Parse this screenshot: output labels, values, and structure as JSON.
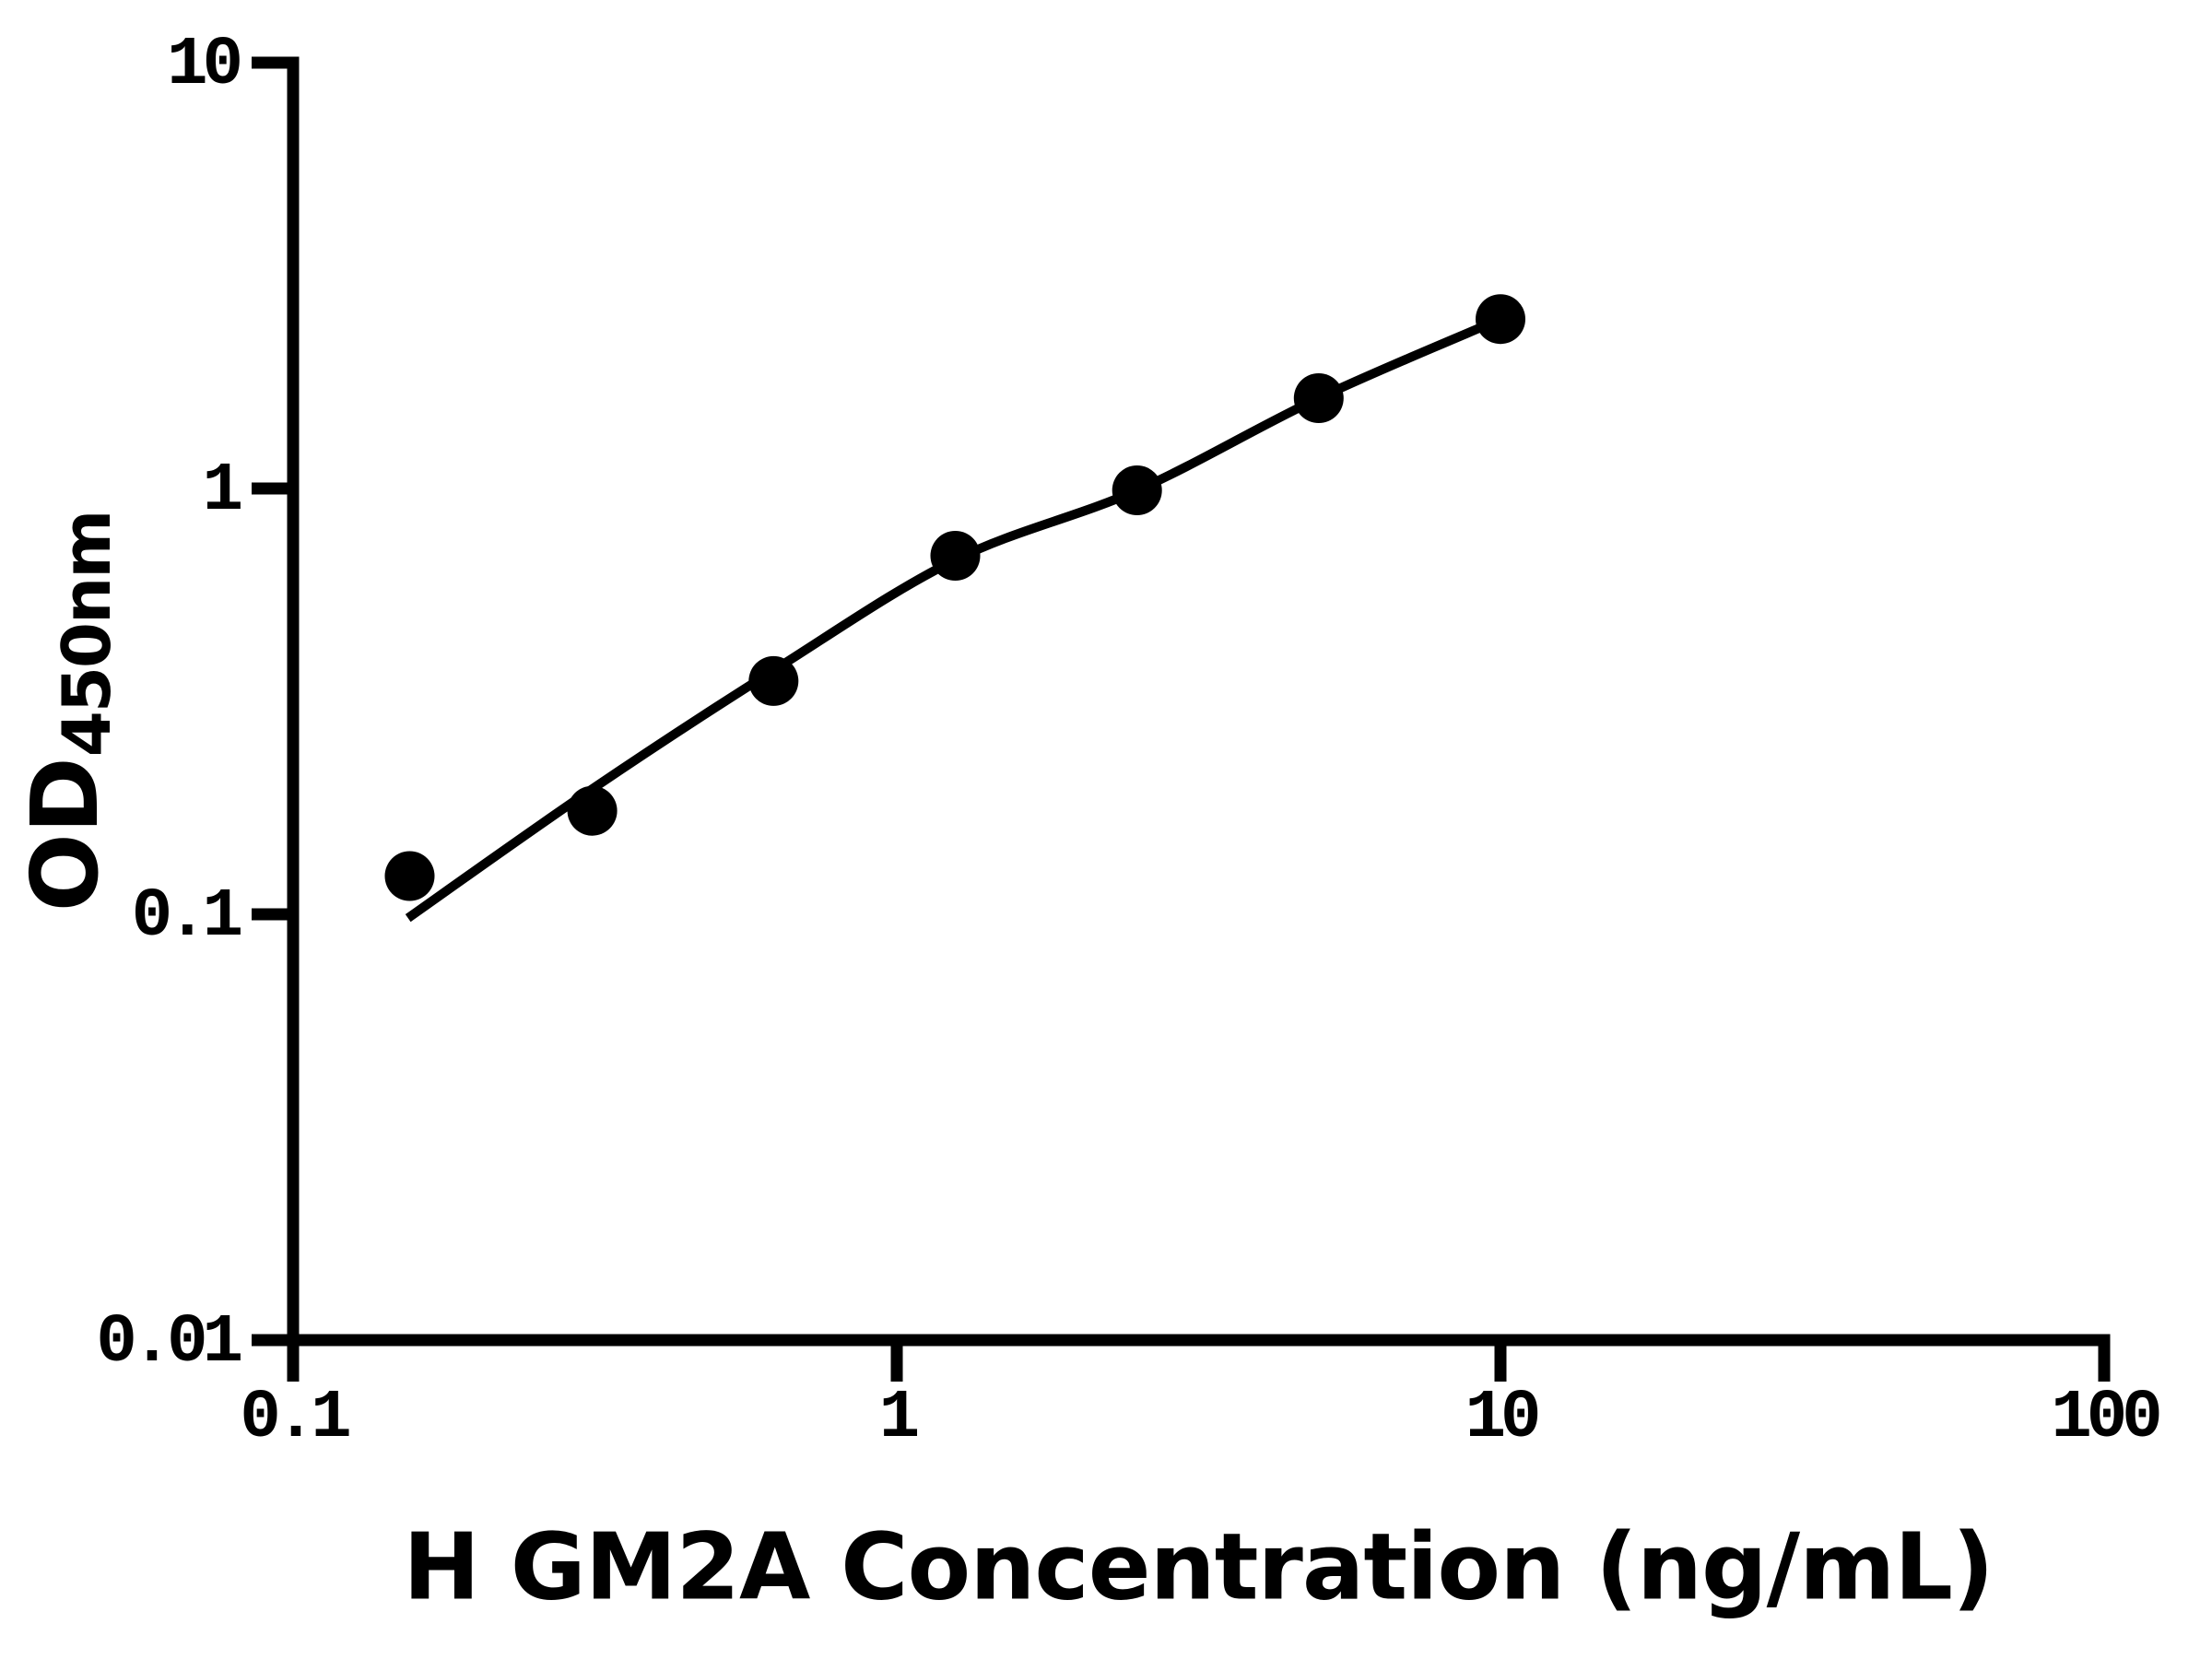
{
  "figure": {
    "background": "#ffffff",
    "ink": "#000000"
  },
  "chart_data": {
    "type": "scatter",
    "title": "",
    "xlabel": "H GM2A Concentration (ng/mL)",
    "ylabel": "OD450nm",
    "ylabel_base": "OD",
    "ylabel_subscript": "450nm",
    "x_scale": "log",
    "y_scale": "log",
    "xlim": [
      0.1,
      100
    ],
    "ylim": [
      0.01,
      10
    ],
    "x_ticks": [
      "0.1",
      "1",
      "10",
      "100"
    ],
    "y_ticks": [
      "10",
      "1",
      "0.1",
      "0.01"
    ],
    "grid": false,
    "legend": "none",
    "marker_color": "#000000",
    "line_color": "#000000",
    "series": [
      {
        "name": "standards",
        "type": "scatter",
        "marker": "circle",
        "points": [
          {
            "x": 0.156,
            "y": 0.123
          },
          {
            "x": 0.313,
            "y": 0.175
          },
          {
            "x": 0.625,
            "y": 0.353
          },
          {
            "x": 1.25,
            "y": 0.695
          },
          {
            "x": 2.5,
            "y": 0.99
          },
          {
            "x": 5,
            "y": 1.63
          },
          {
            "x": 10,
            "y": 2.5
          }
        ]
      },
      {
        "name": "fit-curve",
        "type": "line",
        "points": [
          {
            "x": 0.155,
            "y": 0.098
          },
          {
            "x": 0.313,
            "y": 0.197
          },
          {
            "x": 0.627,
            "y": 0.375
          },
          {
            "x": 1.25,
            "y": 0.68
          },
          {
            "x": 2.5,
            "y": 0.99
          },
          {
            "x": 5,
            "y": 1.63
          },
          {
            "x": 10,
            "y": 2.5
          }
        ]
      }
    ]
  }
}
